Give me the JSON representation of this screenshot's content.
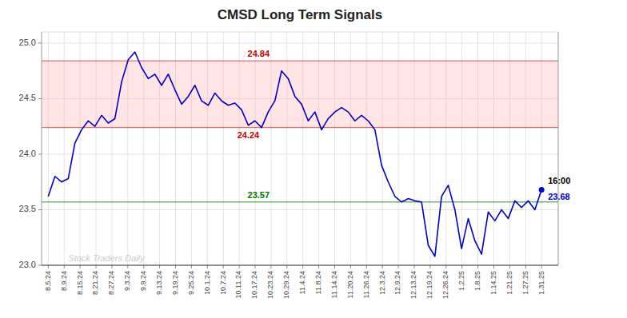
{
  "chart_data": {
    "type": "line",
    "title": "CMSD Long Term Signals",
    "color": "#0000cc",
    "grid": true,
    "x": [
      0,
      1,
      2,
      3,
      4,
      5,
      6,
      7,
      8,
      9,
      10,
      11,
      12,
      13,
      14,
      15,
      16,
      17,
      18,
      19,
      20,
      21,
      22,
      23,
      24,
      25,
      26,
      27,
      28,
      29,
      30,
      31,
      32,
      33,
      34,
      35,
      36,
      37,
      38,
      39,
      40,
      41,
      42,
      43,
      44,
      45,
      46,
      47,
      48,
      49,
      50,
      51,
      52,
      53,
      54,
      55,
      56,
      57,
      58,
      59,
      60,
      61,
      62,
      63,
      64,
      65,
      66,
      67,
      68,
      69,
      70,
      71,
      72,
      73,
      74
    ],
    "values": [
      23.62,
      23.8,
      23.75,
      23.78,
      24.1,
      24.22,
      24.3,
      24.25,
      24.35,
      24.28,
      24.32,
      24.65,
      24.85,
      24.92,
      24.78,
      24.68,
      24.72,
      24.62,
      24.72,
      24.58,
      24.45,
      24.52,
      24.62,
      24.48,
      24.44,
      24.55,
      24.48,
      24.44,
      24.46,
      24.4,
      24.26,
      24.3,
      24.24,
      24.38,
      24.48,
      24.75,
      24.68,
      24.52,
      24.45,
      24.3,
      24.38,
      24.22,
      24.32,
      24.38,
      24.42,
      24.38,
      24.3,
      24.35,
      24.3,
      24.22,
      23.9,
      23.75,
      23.62,
      23.57,
      23.6,
      23.58,
      23.57,
      23.18,
      23.08,
      23.62,
      23.72,
      23.5,
      23.15,
      23.42,
      23.22,
      23.1,
      23.48,
      23.4,
      23.5,
      23.42,
      23.58,
      23.52,
      23.58,
      23.5,
      23.68
    ],
    "xlim": [
      -1,
      76.5
    ],
    "xticks": [
      {
        "value": 0,
        "label": "8.5.24"
      },
      {
        "value": 2.3871,
        "label": "8.9.24"
      },
      {
        "value": 4.7742,
        "label": "8.15.24"
      },
      {
        "value": 7.1613,
        "label": "8.21.24"
      },
      {
        "value": 9.5484,
        "label": "8.27.24"
      },
      {
        "value": 11.9355,
        "label": "9.3.24"
      },
      {
        "value": 14.3226,
        "label": "9.9.24"
      },
      {
        "value": 16.7097,
        "label": "9.13.24"
      },
      {
        "value": 19.0968,
        "label": "9.19.24"
      },
      {
        "value": 21.4839,
        "label": "9.25.24"
      },
      {
        "value": 23.871,
        "label": "10.1.24"
      },
      {
        "value": 26.2581,
        "label": "10.7.24"
      },
      {
        "value": 28.6452,
        "label": "10.11.24"
      },
      {
        "value": 31.0323,
        "label": "10.17.24"
      },
      {
        "value": 33.4194,
        "label": "10.23.24"
      },
      {
        "value": 35.8065,
        "label": "10.29.24"
      },
      {
        "value": 38.1935,
        "label": "11.4.24"
      },
      {
        "value": 40.5806,
        "label": "11.8.24"
      },
      {
        "value": 42.9677,
        "label": "11.14.24"
      },
      {
        "value": 45.3548,
        "label": "11.20.24"
      },
      {
        "value": 47.7419,
        "label": "11.26.24"
      },
      {
        "value": 50.129,
        "label": "12.3.24"
      },
      {
        "value": 52.5161,
        "label": "12.9.24"
      },
      {
        "value": 54.9032,
        "label": "12.13.24"
      },
      {
        "value": 57.2903,
        "label": "12.19.24"
      },
      {
        "value": 59.6774,
        "label": "12.26.24"
      },
      {
        "value": 62.0645,
        "label": "1.2.25"
      },
      {
        "value": 64.4516,
        "label": "1.8.25"
      },
      {
        "value": 66.8387,
        "label": "1.14.25"
      },
      {
        "value": 69.2258,
        "label": "1.21.25"
      },
      {
        "value": 71.6129,
        "label": "1.27.25"
      },
      {
        "value": 74,
        "label": "1.31.25"
      }
    ],
    "ylim": [
      23.0,
      25.1
    ],
    "yticks": [
      {
        "value": 23.0,
        "label": "23.0"
      },
      {
        "value": 23.5,
        "label": "23.5"
      },
      {
        "value": 24.0,
        "label": "24.0"
      },
      {
        "value": 24.5,
        "label": "24.5"
      },
      {
        "value": 25.0,
        "label": "25.0"
      }
    ],
    "hlines": [
      {
        "value": 24.84,
        "label": "24.84",
        "color": "#cc0000"
      },
      {
        "value": 24.24,
        "label": "24.24",
        "color": "#cc0000"
      },
      {
        "value": 23.57,
        "label": "23.57",
        "color": "#007700"
      }
    ],
    "band": [
      24.24,
      24.84
    ],
    "band_color": "#ffaaaa",
    "end_annotations": [
      {
        "text": "16:00"
      },
      {
        "text": "23.68",
        "color": "#0000cc"
      }
    ],
    "watermark": {
      "text": "Stock Traders Daily",
      "x": 3,
      "y": 23.06,
      "color": "#cccccc"
    }
  }
}
